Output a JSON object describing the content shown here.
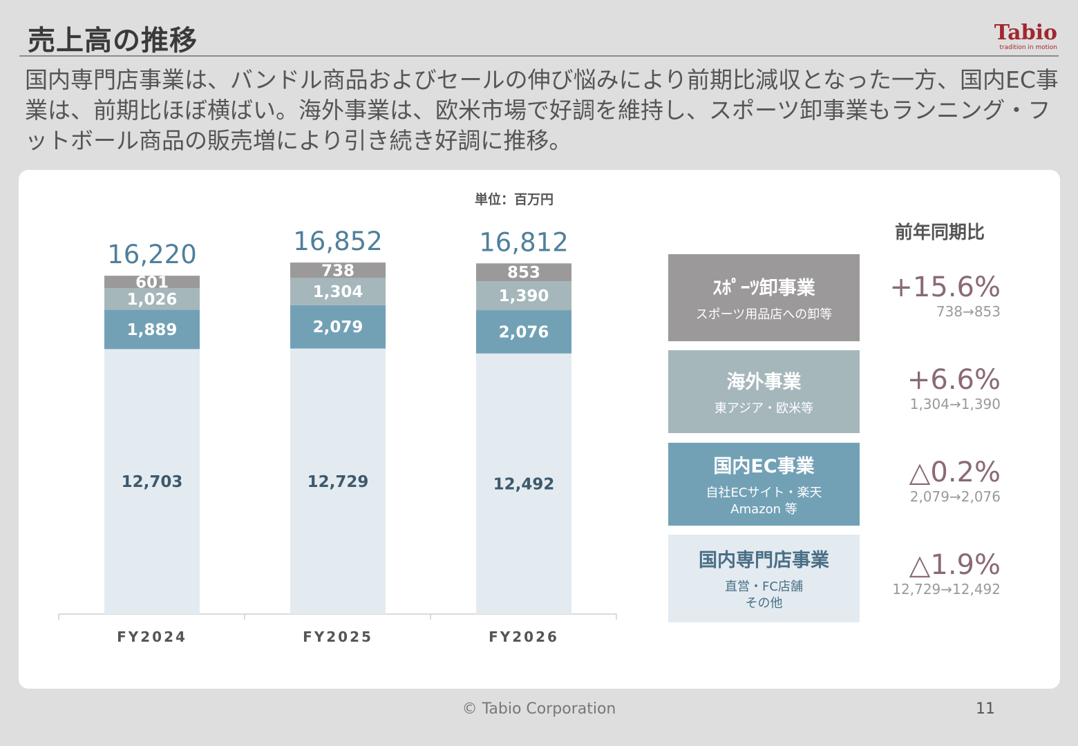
{
  "header": {
    "title": "売上高の推移",
    "logo_word": "Tabio",
    "logo_tagline": "tradition in motion"
  },
  "summary": "国内専門店事業は、バンドル商品およびセールの伸び悩みにより前期比減収となった一方、国内EC事業は、前期比ほぼ横ばい。海外事業は、欧米市場で好調を維持し、スポーツ卸事業もランニング・フットボール商品の販売増により引き続き好調に推移。",
  "unit_label": "単位：百万円",
  "yoy_heading": "前年同期比",
  "chart_data": {
    "type": "bar",
    "stacked": true,
    "categories": [
      "FY2024",
      "FY2025",
      "FY2026"
    ],
    "totals": [
      "16,220",
      "16,852",
      "16,812"
    ],
    "series": [
      {
        "name": "国内専門店事業",
        "values": [
          12703,
          12729,
          12492
        ],
        "labels": [
          "12,703",
          "12,729",
          "12,492"
        ],
        "color": "#e3ebf1",
        "text_color": "#3d5a6c"
      },
      {
        "name": "国内EC事業",
        "values": [
          1889,
          2079,
          2076
        ],
        "labels": [
          "1,889",
          "2,079",
          "2,076"
        ],
        "color": "#72a1b6",
        "text_color": "#ffffff"
      },
      {
        "name": "海外事業",
        "values": [
          1026,
          1304,
          1390
        ],
        "labels": [
          "1,026",
          "1,304",
          "1,390"
        ],
        "color": "#a5b7bb",
        "text_color": "#ffffff"
      },
      {
        "name": "スポーツ卸事業",
        "values": [
          601,
          738,
          853
        ],
        "labels": [
          "601",
          "738",
          "853"
        ],
        "color": "#9b9999",
        "text_color": "#ffffff"
      }
    ]
  },
  "segments": [
    {
      "name": "ｽﾎﾟｰﾂ卸事業",
      "sub": "スポーツ用品店への卸等",
      "pct": "+15.6%",
      "range": "738→853",
      "bg": "#9b9999",
      "fg": "#ffffff"
    },
    {
      "name": "海外事業",
      "sub": "東アジア・欧米等",
      "pct": "+6.6%",
      "range": "1,304→1,390",
      "bg": "#a5b7bb",
      "fg": "#ffffff"
    },
    {
      "name": "国内EC事業",
      "sub": "自社ECサイト・楽天\nAmazon 等",
      "pct": "△0.2%",
      "range": "2,079→2,076",
      "bg": "#72a1b6",
      "fg": "#ffffff"
    },
    {
      "name": "国内専門店事業",
      "sub": "直営・FC店舗\nその他",
      "pct": "△1.9%",
      "range": "12,729→12,492",
      "bg": "#e3ebf1",
      "fg": "#4a6f85"
    }
  ],
  "footer": {
    "copyright": "© Tabio Corporation",
    "page": "11"
  }
}
